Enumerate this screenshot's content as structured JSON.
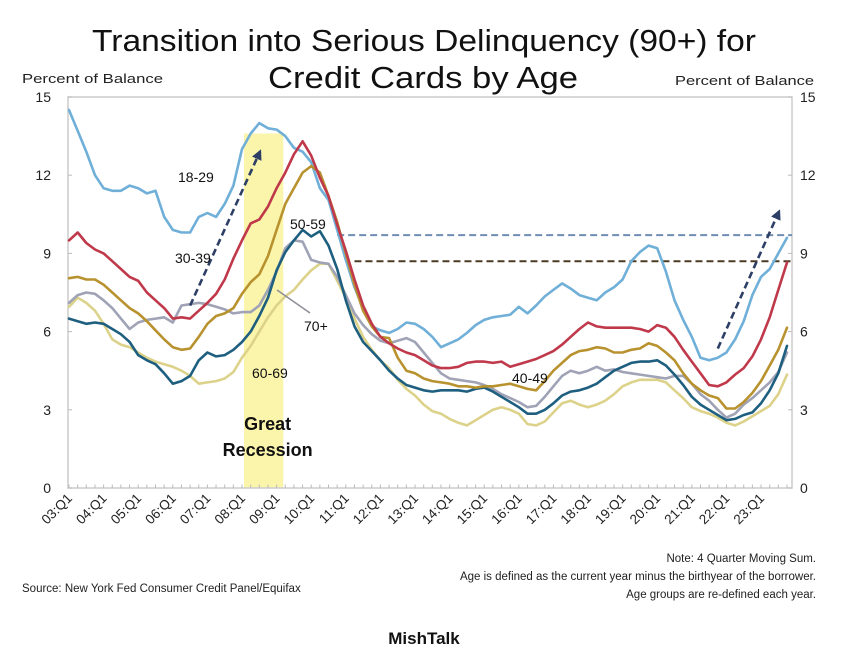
{
  "chart_data": {
    "type": "line",
    "title": "Transition into Serious Delinquency (90+) for Credit Cards by Age",
    "title_lines": [
      "Transition into Serious Delinquency (90+) for",
      "Credit Cards by Age"
    ],
    "xlabel": "",
    "ylabel": "Percent of Balance",
    "ylabel_left": "Percent of Balance",
    "ylabel_right": "Percent of Balance",
    "ylim": [
      0,
      15
    ],
    "yticks": [
      0,
      3,
      6,
      9,
      12,
      15
    ],
    "grid": false,
    "legend": "inline labels next to lines",
    "x_tick_labels": [
      "03:Q1",
      "04:Q1",
      "05:Q1",
      "06:Q1",
      "07:Q1",
      "08:Q1",
      "09:Q1",
      "10:Q1",
      "11:Q1",
      "12:Q1",
      "13:Q1",
      "14:Q1",
      "15:Q1",
      "16:Q1",
      "17:Q1",
      "18:Q1",
      "19:Q1",
      "20:Q1",
      "21:Q1",
      "22:Q1",
      "23:Q1"
    ],
    "x": [
      "03:Q1",
      "03:Q2",
      "03:Q3",
      "03:Q4",
      "04:Q1",
      "04:Q2",
      "04:Q3",
      "04:Q4",
      "05:Q1",
      "05:Q2",
      "05:Q3",
      "05:Q4",
      "06:Q1",
      "06:Q2",
      "06:Q3",
      "06:Q4",
      "07:Q1",
      "07:Q2",
      "07:Q3",
      "07:Q4",
      "08:Q1",
      "08:Q2",
      "08:Q3",
      "08:Q4",
      "09:Q1",
      "09:Q2",
      "09:Q3",
      "09:Q4",
      "10:Q1",
      "10:Q2",
      "10:Q3",
      "10:Q4",
      "11:Q1",
      "11:Q2",
      "11:Q3",
      "11:Q4",
      "12:Q1",
      "12:Q2",
      "12:Q3",
      "12:Q4",
      "13:Q1",
      "13:Q2",
      "13:Q3",
      "13:Q4",
      "14:Q1",
      "14:Q2",
      "14:Q3",
      "14:Q4",
      "15:Q1",
      "15:Q2",
      "15:Q3",
      "15:Q4",
      "16:Q1",
      "16:Q2",
      "16:Q3",
      "16:Q4",
      "17:Q1",
      "17:Q2",
      "17:Q3",
      "17:Q4",
      "18:Q1",
      "18:Q2",
      "18:Q3",
      "18:Q4",
      "19:Q1",
      "19:Q2",
      "19:Q3",
      "19:Q4",
      "20:Q1",
      "20:Q2",
      "20:Q3",
      "20:Q4",
      "21:Q1",
      "21:Q2",
      "21:Q3",
      "21:Q4",
      "22:Q1",
      "22:Q2",
      "22:Q3",
      "22:Q4",
      "23:Q1",
      "23:Q2",
      "23:Q3",
      "23:Q4"
    ],
    "series": [
      {
        "name": "18-29",
        "color": "#6FAFD8",
        "label_color": "#86BCDD",
        "values": [
          14.5,
          13.7,
          12.9,
          12.0,
          11.5,
          11.4,
          11.4,
          11.6,
          11.5,
          11.3,
          11.4,
          10.4,
          9.9,
          9.8,
          9.8,
          10.4,
          10.55,
          10.4,
          10.9,
          11.6,
          13.0,
          13.6,
          14.0,
          13.8,
          13.75,
          13.5,
          13.05,
          12.9,
          12.5,
          11.5,
          11.05,
          9.9,
          8.75,
          7.7,
          6.9,
          6.2,
          6.05,
          5.95,
          6.1,
          6.35,
          6.3,
          6.1,
          5.8,
          5.4,
          5.55,
          5.7,
          5.95,
          6.25,
          6.45,
          6.55,
          6.6,
          6.65,
          6.95,
          6.7,
          7.0,
          7.35,
          7.6,
          7.85,
          7.65,
          7.4,
          7.3,
          7.2,
          7.5,
          7.7,
          8.0,
          8.7,
          9.05,
          9.3,
          9.2,
          8.3,
          7.2,
          6.45,
          5.8,
          5.0,
          4.9,
          5.0,
          5.2,
          5.7,
          6.4,
          7.4,
          8.1,
          8.4,
          9.0,
          9.6
        ]
      },
      {
        "name": "30-39",
        "color": "#C0394B",
        "label_color": "#A86A6A",
        "values": [
          9.5,
          9.8,
          9.4,
          9.15,
          9.0,
          8.7,
          8.4,
          8.1,
          7.95,
          7.5,
          7.2,
          6.9,
          6.5,
          6.55,
          6.5,
          6.8,
          7.1,
          7.45,
          8.0,
          8.8,
          9.5,
          10.15,
          10.3,
          10.8,
          11.5,
          12.1,
          12.8,
          13.3,
          12.75,
          11.9,
          11.2,
          10.1,
          9.1,
          8.0,
          7.0,
          6.3,
          5.8,
          5.55,
          5.35,
          5.2,
          5.1,
          4.9,
          4.7,
          4.6,
          4.6,
          4.65,
          4.8,
          4.85,
          4.85,
          4.8,
          4.85,
          4.65,
          4.75,
          4.85,
          4.95,
          5.1,
          5.25,
          5.5,
          5.8,
          6.1,
          6.35,
          6.2,
          6.15,
          6.15,
          6.15,
          6.15,
          6.1,
          6.0,
          6.25,
          6.15,
          5.8,
          5.3,
          4.85,
          4.4,
          3.95,
          3.9,
          4.05,
          4.35,
          4.6,
          5.05,
          5.7,
          6.55,
          7.6,
          8.65
        ]
      },
      {
        "name": "40-49",
        "color": "#B8922E",
        "label_color": "#B39A66",
        "values": [
          8.05,
          8.1,
          8.0,
          8.0,
          7.8,
          7.5,
          7.2,
          6.9,
          6.7,
          6.4,
          6.05,
          5.7,
          5.4,
          5.3,
          5.35,
          5.8,
          6.3,
          6.6,
          6.7,
          6.9,
          7.45,
          7.9,
          8.2,
          8.9,
          9.9,
          10.9,
          11.5,
          12.1,
          12.35,
          12.1,
          11.2,
          10.2,
          9.0,
          7.8,
          6.8,
          6.2,
          5.8,
          5.75,
          5.0,
          4.5,
          4.4,
          4.2,
          4.1,
          4.05,
          4.0,
          3.9,
          3.9,
          3.85,
          3.9,
          3.9,
          3.95,
          4.0,
          3.9,
          3.8,
          3.75,
          4.1,
          4.5,
          4.8,
          5.1,
          5.25,
          5.3,
          5.4,
          5.35,
          5.2,
          5.2,
          5.3,
          5.35,
          5.55,
          5.45,
          5.2,
          4.9,
          4.4,
          4.0,
          3.75,
          3.55,
          3.45,
          3.05,
          3.05,
          3.3,
          3.65,
          4.1,
          4.7,
          5.3,
          6.15
        ]
      },
      {
        "name": "50-59",
        "color": "#1E5F80",
        "label_color": "#2E6F90",
        "values": [
          6.5,
          6.4,
          6.3,
          6.35,
          6.3,
          6.1,
          5.9,
          5.6,
          5.1,
          4.9,
          4.75,
          4.4,
          4.0,
          4.1,
          4.3,
          4.9,
          5.2,
          5.05,
          5.1,
          5.3,
          5.6,
          6.0,
          6.6,
          7.3,
          8.35,
          9.05,
          9.5,
          9.9,
          9.65,
          9.85,
          9.3,
          8.4,
          7.2,
          6.2,
          5.6,
          5.25,
          4.9,
          4.5,
          4.2,
          3.95,
          3.85,
          3.75,
          3.7,
          3.75,
          3.75,
          3.75,
          3.7,
          3.8,
          3.85,
          3.7,
          3.5,
          3.3,
          3.1,
          2.85,
          2.85,
          3.0,
          3.25,
          3.55,
          3.7,
          3.75,
          3.85,
          4.0,
          4.25,
          4.5,
          4.65,
          4.8,
          4.85,
          4.85,
          4.9,
          4.7,
          4.35,
          3.95,
          3.5,
          3.2,
          3.0,
          2.8,
          2.6,
          2.65,
          2.8,
          2.9,
          3.25,
          3.75,
          4.4,
          5.45
        ]
      },
      {
        "name": "60-69",
        "color": "#DCD28A",
        "label_color": "#D8D090",
        "values": [
          6.95,
          7.3,
          7.1,
          6.8,
          6.3,
          5.7,
          5.5,
          5.4,
          5.2,
          5.0,
          4.85,
          4.75,
          4.65,
          4.5,
          4.3,
          4.0,
          4.05,
          4.1,
          4.2,
          4.45,
          5.0,
          5.45,
          6.0,
          6.55,
          7.0,
          7.35,
          7.6,
          8.0,
          8.35,
          8.6,
          8.6,
          7.95,
          7.3,
          6.5,
          5.8,
          5.3,
          4.9,
          4.6,
          4.15,
          3.8,
          3.55,
          3.2,
          2.95,
          2.85,
          2.65,
          2.5,
          2.4,
          2.6,
          2.8,
          3.0,
          3.1,
          3.0,
          2.85,
          2.45,
          2.4,
          2.55,
          2.9,
          3.25,
          3.35,
          3.2,
          3.1,
          3.2,
          3.35,
          3.6,
          3.9,
          4.05,
          4.15,
          4.15,
          4.15,
          4.05,
          3.75,
          3.45,
          3.1,
          2.95,
          2.85,
          2.7,
          2.5,
          2.4,
          2.55,
          2.75,
          2.95,
          3.15,
          3.6,
          4.35
        ]
      },
      {
        "name": "70+",
        "color": "#9FA3B5",
        "label_color": "#8E8E98",
        "values": [
          7.1,
          7.4,
          7.5,
          7.45,
          7.2,
          6.9,
          6.5,
          6.1,
          6.35,
          6.45,
          6.5,
          6.55,
          6.35,
          7.0,
          7.05,
          7.1,
          7.05,
          6.95,
          6.85,
          6.7,
          6.75,
          6.75,
          7.0,
          7.6,
          8.3,
          9.2,
          9.5,
          9.45,
          8.75,
          8.65,
          8.6,
          8.1,
          7.4,
          6.7,
          6.25,
          5.9,
          5.65,
          5.55,
          5.65,
          5.75,
          5.6,
          5.2,
          4.8,
          4.4,
          4.2,
          4.15,
          4.1,
          4.05,
          3.95,
          3.8,
          3.6,
          3.45,
          3.3,
          3.1,
          3.15,
          3.5,
          3.9,
          4.3,
          4.5,
          4.4,
          4.5,
          4.65,
          4.5,
          4.55,
          4.45,
          4.4,
          4.35,
          4.3,
          4.25,
          4.2,
          4.3,
          4.3,
          4.0,
          3.6,
          3.35,
          3.0,
          2.7,
          2.85,
          3.2,
          3.45,
          3.75,
          4.05,
          4.45,
          5.2
        ]
      }
    ],
    "shaded_regions": [
      {
        "start": "08:Q1",
        "end": "09:Q2",
        "label_lines": [
          "Great",
          "Recession"
        ],
        "color": "#FBF4A6",
        "label_color": "#2F4A7A"
      }
    ],
    "reference_lines": [
      {
        "y": 9.7,
        "start": "10:Q4",
        "end": "23:Q4",
        "style": "dashed",
        "color": "#6F8DB3"
      },
      {
        "y": 8.7,
        "start": "11:Q2",
        "end": "23:Q4",
        "style": "dashed",
        "color": "#4A3B22"
      }
    ],
    "arrows": [
      {
        "from": {
          "x": "06:Q3",
          "y": 7.0
        },
        "to": {
          "x": "08:Q3",
          "y": 12.85
        },
        "style": "dashed",
        "color": "#2E3F66"
      },
      {
        "from": {
          "x": "21:Q4",
          "y": 5.35
        },
        "to": {
          "x": "23:Q3",
          "y": 10.55
        },
        "style": "dashed",
        "color": "#2E3F66"
      }
    ],
    "notes": [
      "Note: 4 Quarter Moving Sum.",
      "Age is defined as the current year minus the birthyear of the borrower.",
      "Age groups are re-defined each year."
    ],
    "source": "Source: New York Fed Consumer Credit Panel/Equifax",
    "branding": "MishTalk",
    "branding_color": "#2E4A7A"
  }
}
